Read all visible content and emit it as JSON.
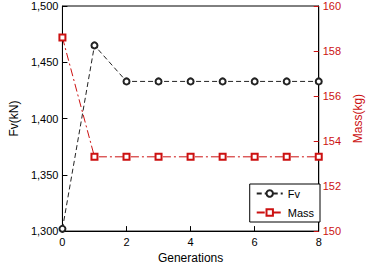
{
  "chart_data": {
    "type": "line",
    "x_label": "Generations",
    "y_label": "Fv(kN)",
    "y2_label": "Mass(kg)",
    "x": [
      0,
      1,
      2,
      3,
      4,
      5,
      6,
      7,
      8
    ],
    "xlim": [
      0,
      8
    ],
    "xticks": [
      0,
      2,
      4,
      6,
      8
    ],
    "ylim": [
      1300,
      1500
    ],
    "yticks": [
      1300,
      1350,
      1400,
      1450,
      1500
    ],
    "y2lim": [
      150,
      160
    ],
    "y2ticks": [
      150,
      152,
      154,
      156,
      158,
      160
    ],
    "grid": false,
    "legend": "lower right",
    "series": [
      {
        "name": "Fv",
        "color": "#222222",
        "marker": "circle",
        "line_style": "dashed",
        "values": [
          1302,
          1465,
          1433,
          1433,
          1433,
          1433,
          1433,
          1433,
          1433
        ]
      },
      {
        "name": "Mass",
        "color": "#cc1111",
        "marker": "square",
        "line_style": "dashdot",
        "axis": "y2",
        "values": [
          158.6,
          153.3,
          153.3,
          153.3,
          153.3,
          153.3,
          153.3,
          153.3,
          153.3
        ]
      }
    ]
  }
}
